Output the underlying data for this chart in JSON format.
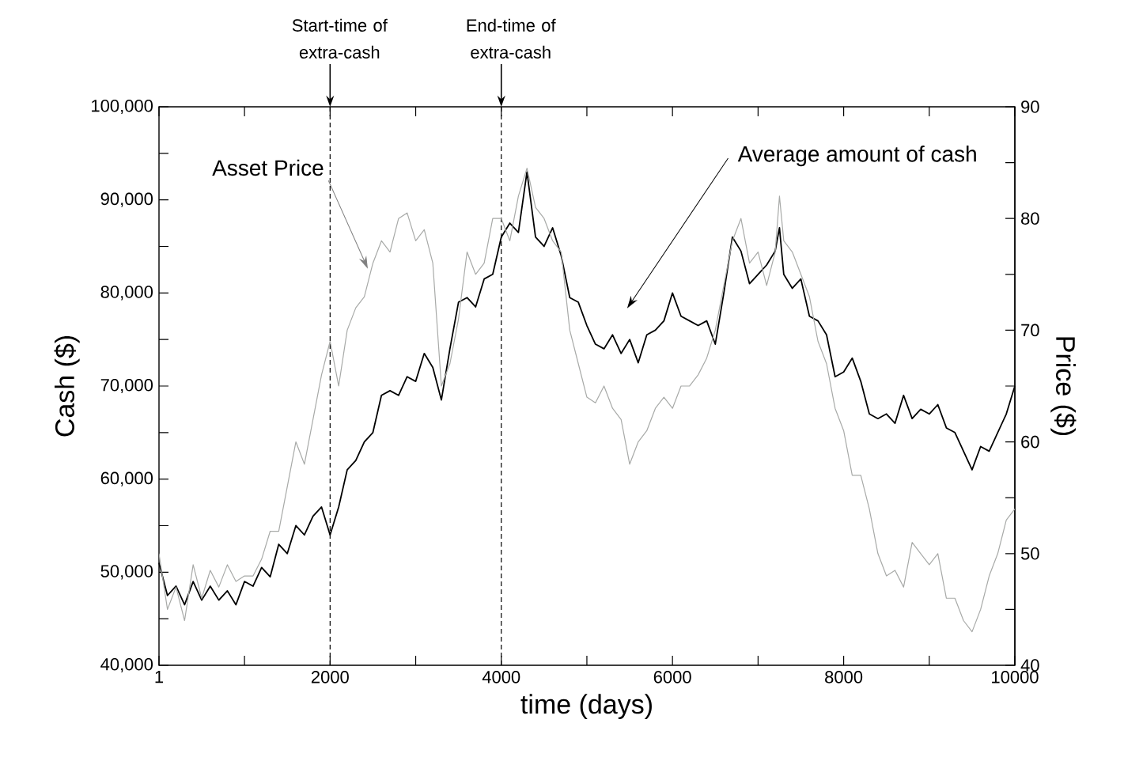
{
  "chart_data": {
    "type": "line",
    "xlabel": "time (days)",
    "ylabel": "Cash ($)",
    "y2label": "Price ($)",
    "x": [
      1,
      100,
      200,
      300,
      400,
      500,
      600,
      700,
      800,
      900,
      1000,
      1100,
      1200,
      1300,
      1400,
      1500,
      1600,
      1700,
      1800,
      1900,
      2000,
      2100,
      2200,
      2300,
      2400,
      2500,
      2600,
      2700,
      2800,
      2900,
      3000,
      3100,
      3200,
      3300,
      3400,
      3500,
      3600,
      3700,
      3800,
      3900,
      4000,
      4100,
      4200,
      4300,
      4400,
      4500,
      4600,
      4700,
      4800,
      4900,
      5000,
      5100,
      5200,
      5300,
      5400,
      5500,
      5600,
      5700,
      5800,
      5900,
      6000,
      6100,
      6200,
      6300,
      6400,
      6500,
      6600,
      6700,
      6800,
      6900,
      7000,
      7100,
      7200,
      7250,
      7300,
      7400,
      7500,
      7600,
      7700,
      7800,
      7900,
      8000,
      8100,
      8200,
      8300,
      8400,
      8500,
      8600,
      8700,
      8800,
      8900,
      9000,
      9100,
      9200,
      9300,
      9400,
      9500,
      9600,
      9700,
      9800,
      9900,
      10000
    ],
    "series": [
      {
        "color": "#000000",
        "values": [
          51000,
          47500,
          48500,
          46500,
          49000,
          47000,
          48500,
          47000,
          48000,
          46500,
          49000,
          48500,
          50500,
          49500,
          53000,
          52000,
          55000,
          54000,
          56000,
          57000,
          54000,
          57000,
          61000,
          62000,
          64000,
          65000,
          69000,
          69500,
          69000,
          71000,
          70500,
          73500,
          72000,
          68500,
          74000,
          79000,
          79500,
          78500,
          81500,
          82000,
          86000,
          87500,
          86500,
          93000,
          86000,
          85000,
          87000,
          84000,
          79500,
          79000,
          76500,
          74500,
          74000,
          75500,
          73500,
          75000,
          72500,
          75500,
          76000,
          77000,
          80000,
          77500,
          77000,
          76500,
          77000,
          74500,
          80000,
          86000,
          84500,
          81000,
          82000,
          83000,
          84500,
          87000,
          82000,
          80500,
          81500,
          77500,
          77000,
          75500,
          71000,
          71500,
          73000,
          70500,
          67000,
          66500,
          67000,
          66000,
          69000,
          66500,
          67500,
          67000,
          68000,
          65500,
          65000,
          63000,
          61000,
          63500,
          63000,
          65000,
          67000,
          70000
        ]
      },
      {
        "color": "#a8aaa8",
        "axis": "y2",
        "values": [
          50,
          45,
          47,
          44,
          49,
          46,
          48.5,
          47,
          49,
          47.5,
          48,
          48,
          49.5,
          52,
          52,
          56,
          60,
          58,
          62,
          66,
          69,
          65,
          70,
          72,
          73,
          76,
          78,
          77,
          80,
          80.5,
          78,
          79,
          76,
          65,
          67,
          71,
          77,
          75,
          76,
          80,
          80,
          78,
          82,
          84.5,
          81,
          80,
          78,
          77,
          70,
          67,
          64,
          63.5,
          65,
          63,
          62,
          58,
          60,
          61,
          63,
          64,
          63,
          65,
          65,
          66,
          67.5,
          70,
          74,
          78,
          80,
          76,
          77,
          74,
          77,
          82,
          78,
          77,
          75,
          73,
          69,
          67,
          63,
          61,
          57,
          57,
          54,
          50,
          48,
          48.5,
          47,
          51,
          50,
          49,
          50,
          46,
          46,
          44,
          43,
          45,
          48,
          50,
          53,
          54
        ]
      }
    ],
    "xlim": [
      1,
      10000
    ],
    "xticks": [
      1,
      {
        "value": 1000,
        "label": null
      },
      2000,
      {
        "value": 3000,
        "label": null
      },
      4000,
      {
        "value": 5000,
        "label": null
      },
      6000,
      {
        "value": 7000,
        "label": null
      },
      8000,
      {
        "value": 9000,
        "label": null
      },
      10000
    ],
    "ylim": [
      40000,
      100000
    ],
    "yticks": [
      {
        "value": 40000,
        "label": "40,000"
      },
      {
        "value": 45000,
        "label": null
      },
      {
        "value": 50000,
        "label": "50,000"
      },
      {
        "value": 55000,
        "label": null
      },
      {
        "value": 60000,
        "label": "60,000"
      },
      {
        "value": 65000,
        "label": null
      },
      {
        "value": 70000,
        "label": "70,000"
      },
      {
        "value": 75000,
        "label": null
      },
      {
        "value": 80000,
        "label": "80,000"
      },
      {
        "value": 85000,
        "label": null
      },
      {
        "value": 90000,
        "label": "90,000"
      },
      {
        "value": 95000,
        "label": null
      },
      {
        "value": 100000,
        "label": "100,000"
      }
    ],
    "y2lim": [
      40,
      90
    ],
    "y2ticks": [
      40,
      {
        "value": 45,
        "label": null
      },
      50,
      {
        "value": 55,
        "label": null
      },
      60,
      {
        "value": 65,
        "label": null
      },
      70,
      {
        "value": 75,
        "label": null
      },
      80,
      {
        "value": 85,
        "label": null
      },
      90
    ],
    "ref_lines": [
      {
        "axis": "x",
        "value": 2000,
        "label": "Start-time of extra-cash",
        "line_style": "dashed"
      },
      {
        "axis": "x",
        "value": 4000,
        "label": "End-time of extra-cash",
        "line_style": "dashed"
      }
    ],
    "annotations": [
      "Asset Price",
      "Average amount of cash"
    ]
  }
}
